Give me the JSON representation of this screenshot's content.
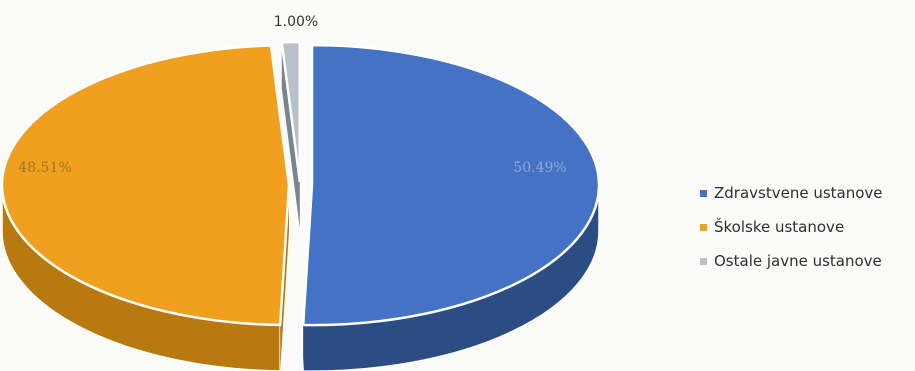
{
  "chart_data": {
    "type": "pie",
    "style": "3d-exploded",
    "title": "",
    "slices": [
      {
        "label": "Zdravstvene ustanove",
        "value": 50.49,
        "data_label": "50.49%",
        "color": "#4472c4",
        "side_color": "#2c4c84",
        "label_color": "#8faadc"
      },
      {
        "label": "Školske ustanove",
        "value": 48.51,
        "data_label": "48.51%",
        "color": "#f0a01e",
        "side_color": "#b8790f",
        "label_color": "#a07420"
      },
      {
        "label": "Ostale javne ustanove",
        "value": 1.0,
        "data_label": "1.00%",
        "color": "#b8c0c8",
        "side_color": "#7b838b",
        "label_color": "#333333"
      }
    ],
    "legend_position": "right"
  }
}
